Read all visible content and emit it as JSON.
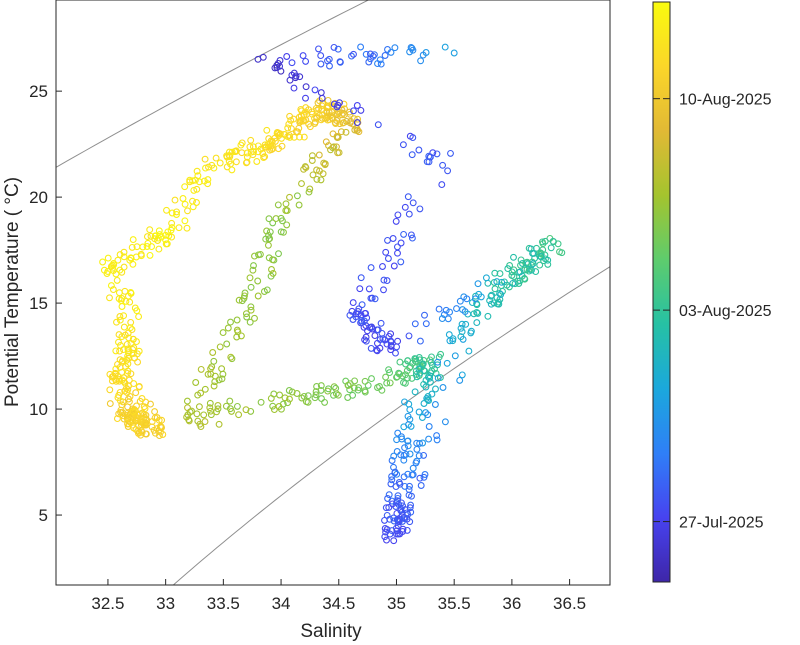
{
  "chart_data": {
    "type": "scatter",
    "title": "",
    "xlabel": "Salinity",
    "ylabel": "Potential Temperature ( °C)",
    "xlim": [
      32.05,
      36.85
    ],
    "ylim": [
      1.7,
      29.3
    ],
    "xticks": [
      32.5,
      33,
      33.5,
      34,
      34.5,
      35,
      35.5,
      36,
      36.5
    ],
    "xtick_labels": [
      "32.5",
      "33",
      "33.5",
      "34",
      "34.5",
      "35",
      "35.5",
      "36",
      "36.5"
    ],
    "yticks": [
      5,
      10,
      15,
      20,
      25
    ],
    "ytick_labels": [
      "5",
      "10",
      "15",
      "20",
      "25"
    ],
    "grid": false,
    "marker": "open-circle",
    "background_contours": "potential density isopycnals (gray), one highlighted darker",
    "colorbar": {
      "label_dates": [
        "27-Jul-2025",
        "03-Aug-2025",
        "10-Aug-2025"
      ],
      "label_days_from_start": [
        2.0,
        9.0,
        16.0
      ],
      "range_days": [
        0,
        19.2
      ],
      "colormap": "parula",
      "colors": [
        "#3e26a8",
        "#4743f0",
        "#2f7ff7",
        "#1ba8dc",
        "#26c1a4",
        "#5ecc6d",
        "#a4c42e",
        "#e1b935",
        "#fbd629",
        "#f9fb0e"
      ]
    },
    "series": [
      {
        "values": [
          {
            "s": 32.62,
            "t": 10.2,
            "c": 16.5
          },
          {
            "s": 32.75,
            "t": 9.6,
            "c": 17.0
          },
          {
            "s": 32.9,
            "t": 9.0,
            "c": 16.5
          },
          {
            "s": 32.6,
            "t": 11.4,
            "c": 17.5
          },
          {
            "s": 32.7,
            "t": 13.1,
            "c": 18.0
          },
          {
            "s": 32.55,
            "t": 16.8,
            "c": 18.5
          },
          {
            "s": 33.0,
            "t": 18.2,
            "c": 18.5
          },
          {
            "s": 33.4,
            "t": 21.5,
            "c": 18.0
          },
          {
            "s": 33.9,
            "t": 22.5,
            "c": 17.5
          },
          {
            "s": 34.2,
            "t": 23.6,
            "c": 17.0
          },
          {
            "s": 34.4,
            "t": 24.2,
            "c": 16.5
          },
          {
            "s": 34.6,
            "t": 23.5,
            "c": 15.0
          },
          {
            "s": 34.0,
            "t": 19.0,
            "c": 12.0
          },
          {
            "s": 33.7,
            "t": 14.5,
            "c": 12.5
          },
          {
            "s": 33.2,
            "t": 9.5,
            "c": 13.0
          },
          {
            "s": 34.2,
            "t": 10.6,
            "c": 12.0
          },
          {
            "s": 35.0,
            "t": 11.5,
            "c": 11.0
          },
          {
            "s": 35.3,
            "t": 12.2,
            "c": 9.0
          },
          {
            "s": 35.1,
            "t": 8.5,
            "c": 5.0
          },
          {
            "s": 35.02,
            "t": 5.5,
            "c": 3.0
          },
          {
            "s": 35.0,
            "t": 4.1,
            "c": 2.5
          },
          {
            "s": 35.6,
            "t": 14.0,
            "c": 7.0
          },
          {
            "s": 36.0,
            "t": 16.3,
            "c": 9.0
          },
          {
            "s": 36.4,
            "t": 17.8,
            "c": 9.5
          },
          {
            "s": 34.95,
            "t": 12.8,
            "c": 2.0
          },
          {
            "s": 34.65,
            "t": 14.5,
            "c": 2.5
          },
          {
            "s": 35.4,
            "t": 21.5,
            "c": 3.0
          },
          {
            "s": 33.8,
            "t": 26.5,
            "c": 1.0
          },
          {
            "s": 35.5,
            "t": 26.8,
            "c": 6.0
          }
        ]
      }
    ]
  }
}
